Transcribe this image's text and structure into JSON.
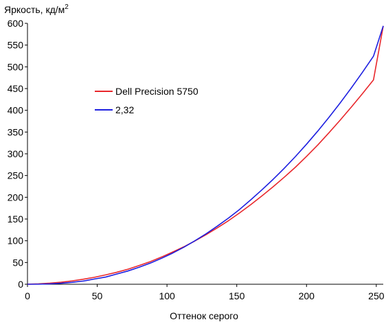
{
  "chart_data": {
    "type": "line",
    "ylabel": "Яркость, кд/м",
    "ylabel_superscript": "2",
    "xlabel": "Оттенок серого",
    "xlim": [
      0,
      255
    ],
    "ylim": [
      0,
      600
    ],
    "x_ticks": [
      0,
      50,
      100,
      150,
      200,
      250
    ],
    "y_ticks": [
      0,
      50,
      100,
      150,
      200,
      250,
      300,
      350,
      400,
      450,
      500,
      550,
      600
    ],
    "grid": false,
    "legend_position": "upper-left-inside",
    "series": [
      {
        "name": "Dell Precision 5750",
        "color": "#e8262b",
        "x": [
          0,
          8,
          16,
          24,
          32,
          40,
          48,
          56,
          64,
          72,
          80,
          88,
          96,
          104,
          112,
          120,
          128,
          136,
          144,
          152,
          160,
          168,
          176,
          184,
          192,
          200,
          208,
          216,
          224,
          232,
          240,
          248,
          255
        ],
        "y": [
          0.2,
          0.9,
          2.5,
          4.7,
          7.7,
          11.5,
          16,
          21.5,
          27.5,
          34.5,
          43,
          52,
          62.5,
          74,
          86,
          99.5,
          114,
          129.5,
          146,
          164,
          183,
          203,
          224,
          246,
          269,
          294,
          320,
          348,
          377,
          407,
          438,
          470,
          594
        ]
      },
      {
        "name": "2,32",
        "color": "#1c1ee0",
        "gamma": 2.32,
        "x": [
          0,
          8,
          16,
          24,
          32,
          40,
          48,
          56,
          64,
          72,
          80,
          88,
          96,
          104,
          112,
          120,
          128,
          136,
          144,
          152,
          160,
          168,
          176,
          184,
          192,
          200,
          208,
          216,
          224,
          232,
          240,
          248,
          255
        ],
        "y": [
          0,
          0.2,
          0.9,
          2.3,
          4.5,
          7.3,
          12,
          16.5,
          23.5,
          30.5,
          39,
          48.5,
          59.5,
          71.5,
          85,
          100,
          116,
          133.5,
          152,
          172,
          194,
          217,
          241,
          266.5,
          293.5,
          322,
          352,
          383.5,
          416.5,
          451,
          487,
          524.5,
          594
        ]
      }
    ]
  }
}
